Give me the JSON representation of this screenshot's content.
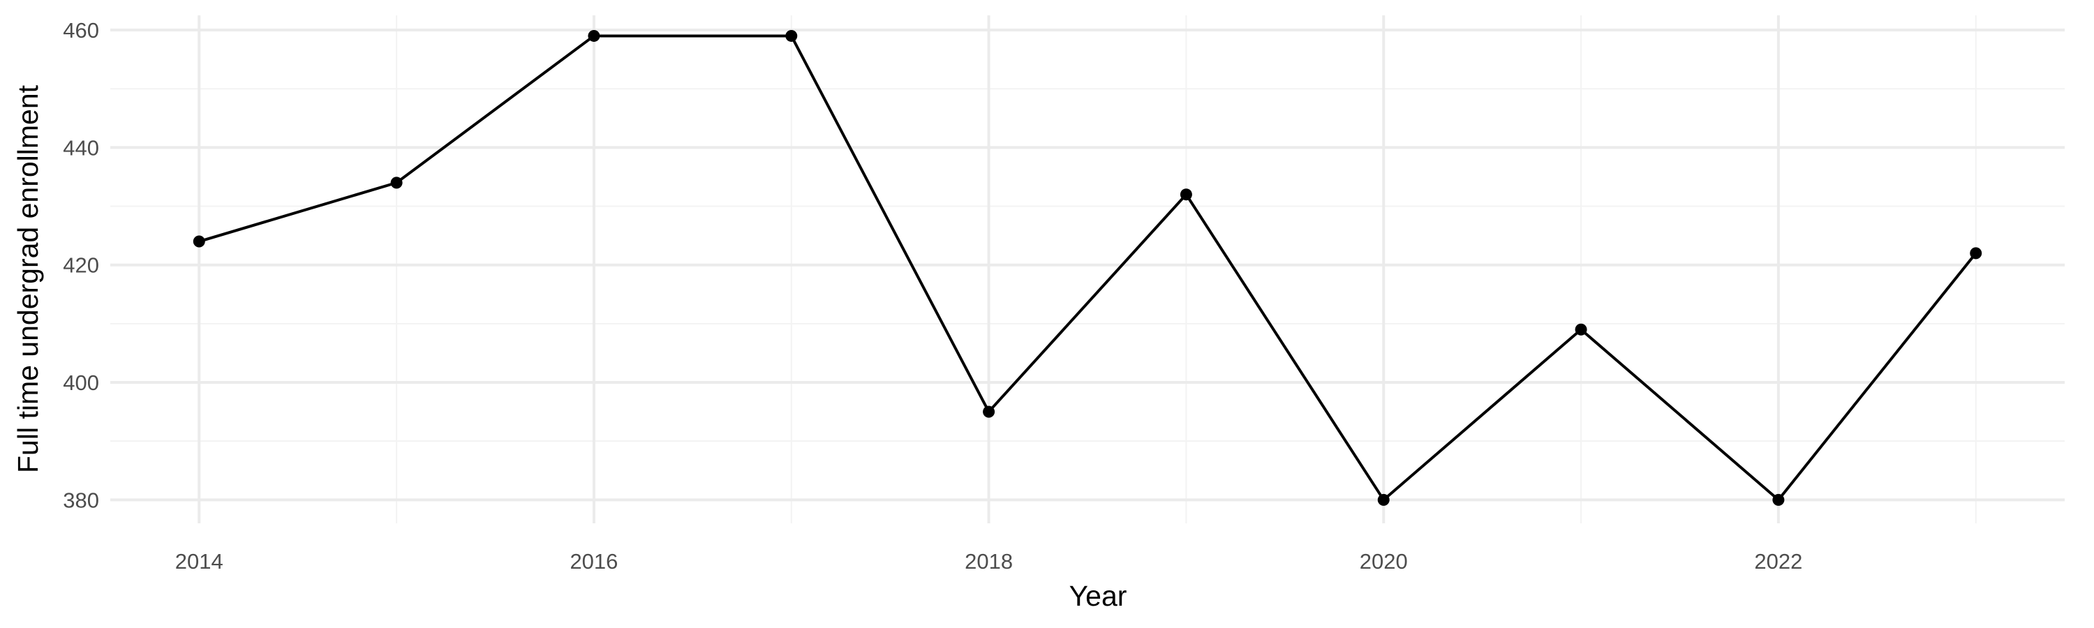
{
  "chart_data": {
    "type": "line",
    "title": "",
    "xlabel": "Year",
    "ylabel": "Full time undergrad enrollment",
    "x": [
      2014,
      2015,
      2016,
      2017,
      2018,
      2019,
      2020,
      2021,
      2022,
      2023
    ],
    "series": [
      {
        "values": [
          424,
          434,
          459,
          459,
          395,
          432,
          380,
          409,
          380,
          422
        ]
      }
    ],
    "xlim": [
      2013.55,
      2023.45
    ],
    "ylim": [
      376,
      462.5
    ],
    "x_ticks": [
      2014,
      2016,
      2018,
      2020,
      2022
    ],
    "y_ticks": [
      380,
      400,
      420,
      440,
      460
    ],
    "x_tick_labels": [
      "2014",
      "2016",
      "2018",
      "2020",
      "2022"
    ],
    "y_tick_labels": [
      "380",
      "400",
      "420",
      "440",
      "460"
    ],
    "grid": true,
    "legend": "none",
    "colors": {
      "line": "#000000",
      "points": "#000000",
      "grid": "#ebebeb",
      "background": "#ffffff"
    }
  }
}
